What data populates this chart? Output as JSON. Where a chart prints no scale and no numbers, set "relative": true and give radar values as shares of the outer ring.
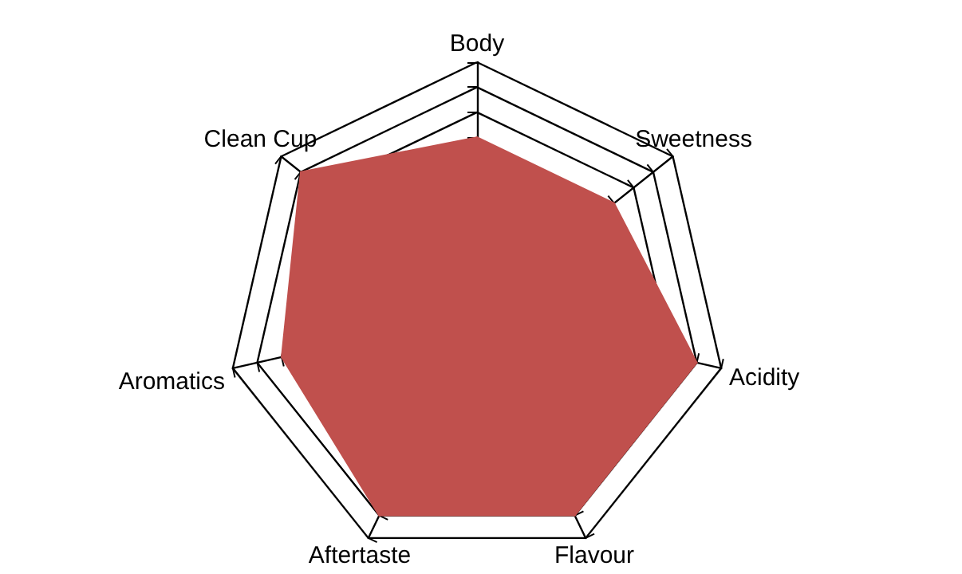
{
  "chart_data": {
    "type": "radar",
    "relative": true,
    "categories": [
      "Body",
      "Sweetness",
      "Acidity",
      "Flavour",
      "Aftertaste",
      "Aromatics",
      "Clean Cup"
    ],
    "series": [
      {
        "color": "#c0504d",
        "values": [
          0.7,
          0.7,
          0.9,
          0.9,
          0.9,
          0.8,
          0.9
        ]
      }
    ]
  }
}
